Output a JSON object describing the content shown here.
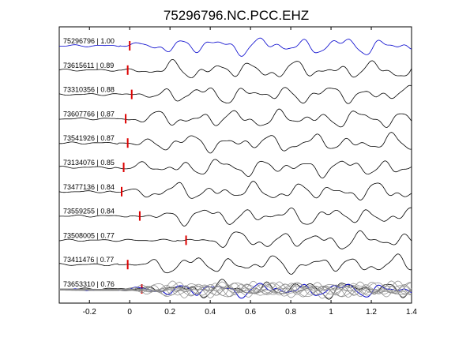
{
  "chart_data": {
    "type": "line",
    "title": "75296796.NC.PCC.EHZ",
    "xlim": [
      -0.35,
      1.4
    ],
    "x_ticks": [
      -0.2,
      0,
      0.2,
      0.4,
      0.6,
      0.8,
      1,
      1.2,
      1.4
    ],
    "x_tick_labels": [
      "-0.2",
      "0",
      "0.2",
      "0.4",
      "0.6",
      "0.8",
      "1",
      "1.2",
      "1.4"
    ],
    "grid": false,
    "traces": [
      {
        "label": "75296796 | 1.00",
        "pick_time": 0.0,
        "color": "#0000cc"
      },
      {
        "label": "73615611 | 0.89",
        "pick_time": -0.01,
        "color": "#000000"
      },
      {
        "label": "73310356 | 0.88",
        "pick_time": 0.01,
        "color": "#000000"
      },
      {
        "label": "73607766 | 0.87",
        "pick_time": -0.02,
        "color": "#000000"
      },
      {
        "label": "73541926 | 0.87",
        "pick_time": -0.01,
        "color": "#000000"
      },
      {
        "label": "73134076 | 0.85",
        "pick_time": -0.03,
        "color": "#000000"
      },
      {
        "label": "73477136 | 0.84",
        "pick_time": -0.04,
        "color": "#000000"
      },
      {
        "label": "73559255 | 0.84",
        "pick_time": 0.05,
        "color": "#000000"
      },
      {
        "label": "73508005 | 0.77",
        "pick_time": 0.28,
        "color": "#000000"
      },
      {
        "label": "73411476 | 0.77",
        "pick_time": -0.01,
        "color": "#000000"
      },
      {
        "label": "73653310 | 0.76",
        "pick_time": 0.06,
        "color": "#000000"
      }
    ],
    "stack": {
      "overlay_color": "#888888",
      "reference_color": "#0000cc"
    }
  }
}
